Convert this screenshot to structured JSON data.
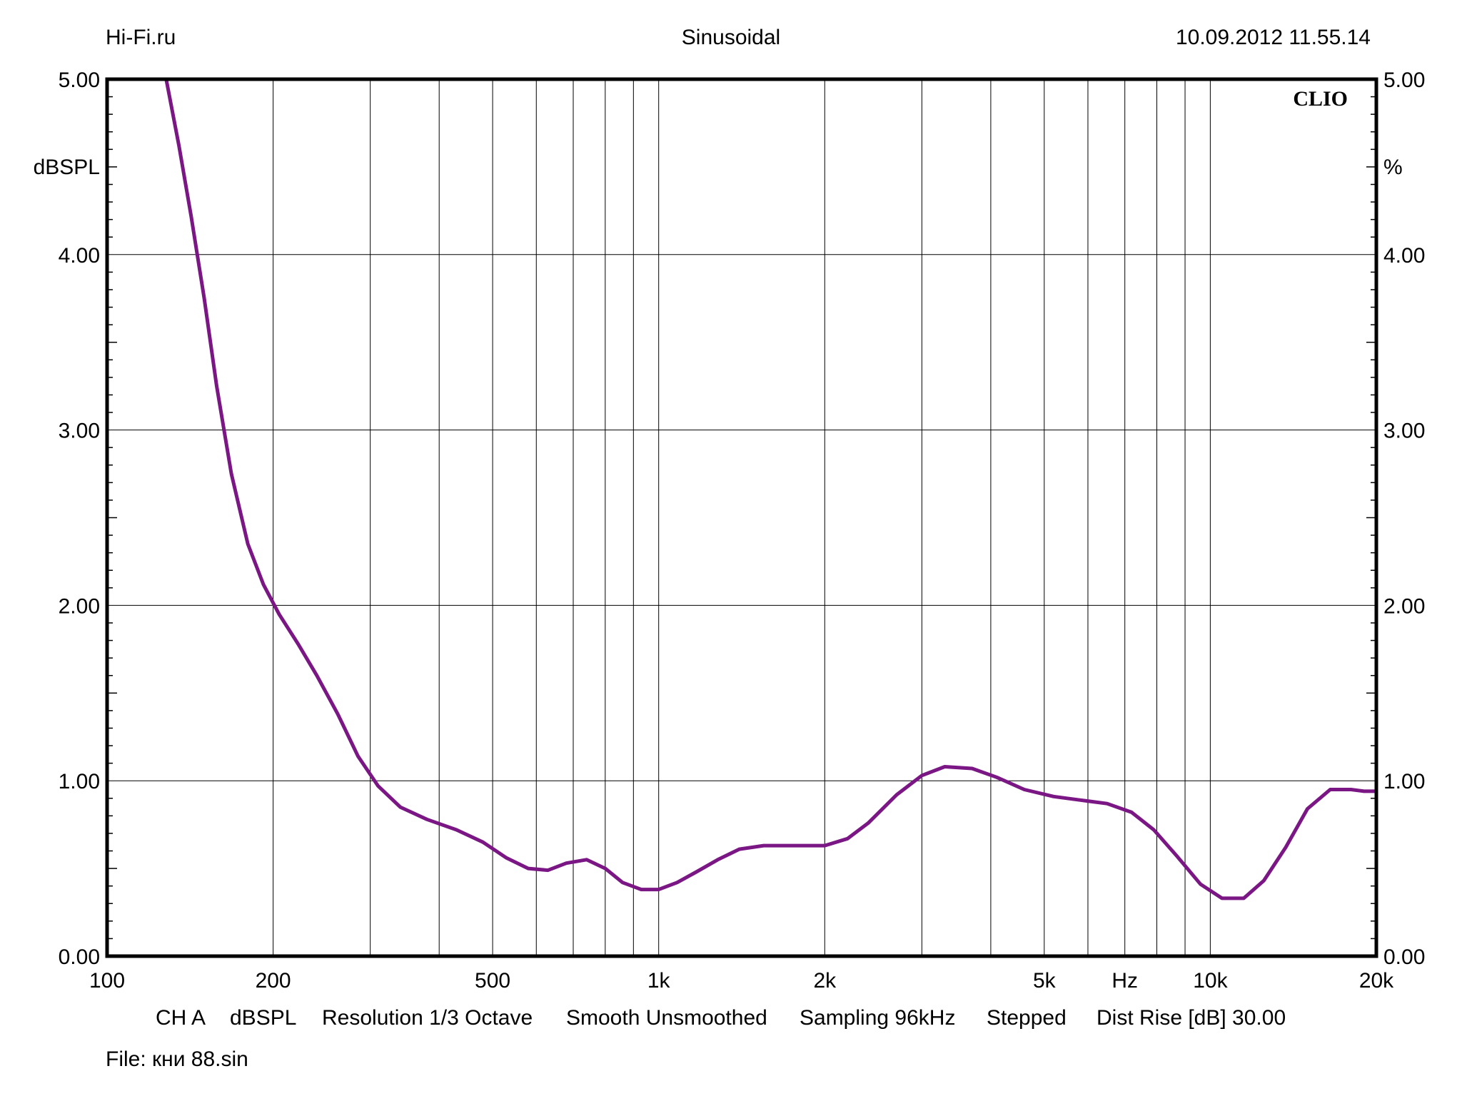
{
  "header": {
    "left": "Hi-Fi.ru",
    "center": "Sinusoidal",
    "right": "10.09.2012 11.55.14"
  },
  "chart_data": {
    "type": "line",
    "brand": "CLIO",
    "left_unit": "dBSPL",
    "right_unit": "%",
    "xscale": "log",
    "xlim": [
      100,
      20000
    ],
    "ylim": [
      0,
      5
    ],
    "grid": true,
    "line_color": "#7b1685",
    "x_tick_labels": [
      {
        "value": 100,
        "label": "100"
      },
      {
        "value": 200,
        "label": "200"
      },
      {
        "value": 500,
        "label": "500"
      },
      {
        "value": 1000,
        "label": "1k"
      },
      {
        "value": 2000,
        "label": "2k"
      },
      {
        "value": 5000,
        "label": "5k"
      },
      {
        "value": 10000,
        "label": "10k"
      },
      {
        "value": 20000,
        "label": "20k"
      }
    ],
    "x_unit_label": {
      "value": 7000,
      "label": "Hz"
    },
    "y_tick_labels": [
      "0.00",
      "1.00",
      "2.00",
      "3.00",
      "4.00",
      "5.00"
    ],
    "series": [
      {
        "x": [
          128,
          135,
          142,
          150,
          158,
          168,
          180,
          192,
          205,
          222,
          240,
          262,
          285,
          310,
          340,
          380,
          430,
          480,
          530,
          580,
          630,
          680,
          740,
          800,
          860,
          930,
          1000,
          1080,
          1170,
          1280,
          1400,
          1550,
          1700,
          1850,
          2000,
          2200,
          2400,
          2700,
          3000,
          3300,
          3700,
          4100,
          4600,
          5200,
          5800,
          6500,
          7200,
          7900,
          8700,
          9600,
          10500,
          11500,
          12500,
          13700,
          15000,
          16500,
          18000,
          19000,
          20000
        ],
        "y": [
          5.0,
          4.62,
          4.22,
          3.75,
          3.25,
          2.75,
          2.35,
          2.12,
          1.95,
          1.78,
          1.6,
          1.38,
          1.14,
          0.97,
          0.85,
          0.78,
          0.72,
          0.65,
          0.56,
          0.5,
          0.49,
          0.53,
          0.55,
          0.5,
          0.42,
          0.38,
          0.38,
          0.42,
          0.48,
          0.55,
          0.61,
          0.63,
          0.63,
          0.63,
          0.63,
          0.67,
          0.76,
          0.92,
          1.03,
          1.08,
          1.07,
          1.02,
          0.95,
          0.91,
          0.89,
          0.87,
          0.82,
          0.72,
          0.57,
          0.41,
          0.33,
          0.33,
          0.43,
          0.62,
          0.84,
          0.95,
          0.95,
          0.94,
          0.94
        ]
      }
    ]
  },
  "footer": {
    "channel": "CH A",
    "unit": "dBSPL",
    "resolution": "Resolution 1/3 Octave",
    "smoothing": "Smooth Unsmoothed",
    "sampling": "Sampling 96kHz",
    "mode": "Stepped",
    "dist_rise": "Dist Rise [dB] 30.00",
    "file": "File: кни 88.sin"
  }
}
